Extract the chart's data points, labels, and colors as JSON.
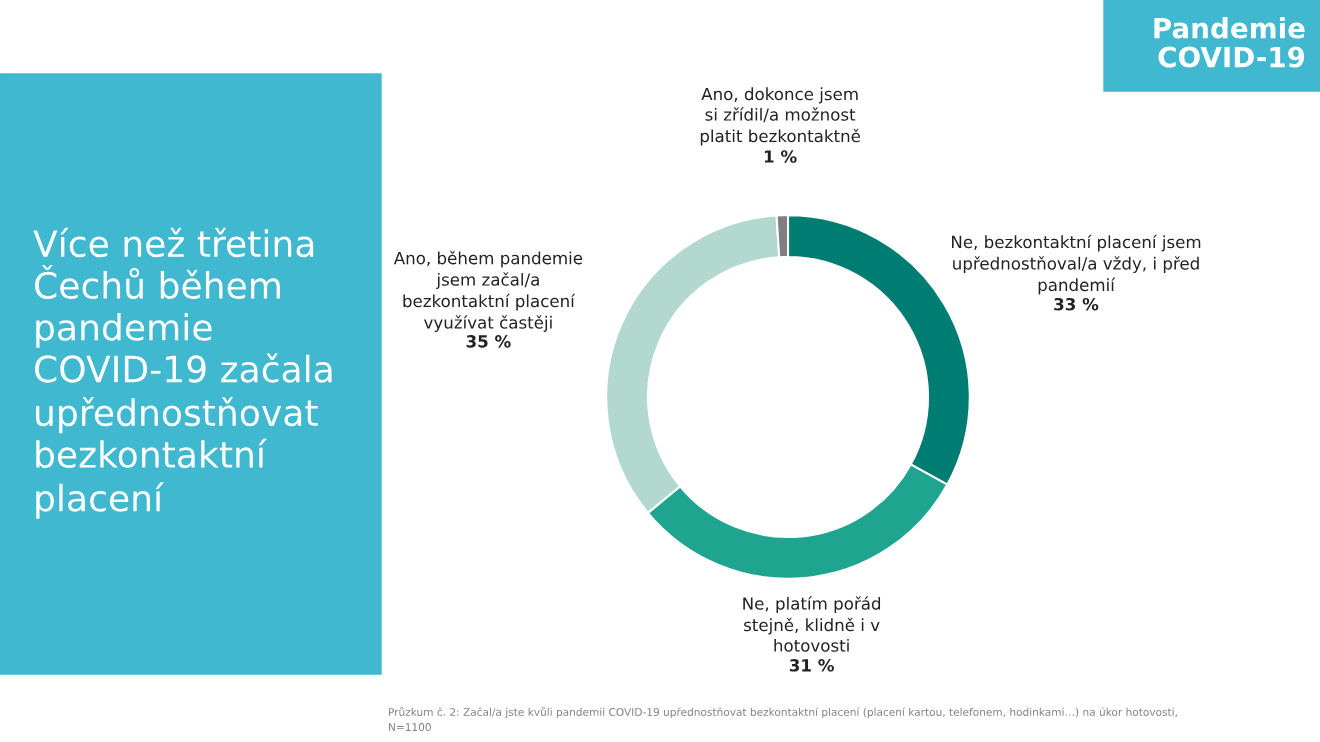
{
  "chart_data": {
    "type": "donut",
    "title": "Více než třetina\nČechů během\npandemie\nCOVID-19 začala\nupřednostňovat\nbezkontaktní\nplacení",
    "subtitle": "Pandemie\nCOVID-19",
    "categories": [
      "Ne, bezkontaktní placení jsem\nupřednostňoval/a vždy, i před\npandemií",
      "Ne, platím pořád\nstejně, klidně i v\nhotovosti",
      "Ano, během pandemie\njsem začal/a\nbezkontaktní placení\nvyužívat častěji",
      "Ano, dokonce jsem\nsi zřídil/a možnost\nplatit bezkontaktně"
    ],
    "values": [
      33,
      31,
      35,
      1
    ],
    "colors": [
      "#007d73",
      "#1fa58f",
      "#b2d8d0",
      "#7f7f7f"
    ],
    "value_labels": [
      "33 %",
      "31 %",
      "35 %",
      "1 %"
    ],
    "legend": false,
    "annotations": [
      "Průzkum č. 2: Začal/a jste kvůli pandemii COVID-19 upřednostňovat bezkontaktní placení (placení kartou, telefonem, hodinkami…) na úkor hotovosti,\nN=1100"
    ]
  }
}
